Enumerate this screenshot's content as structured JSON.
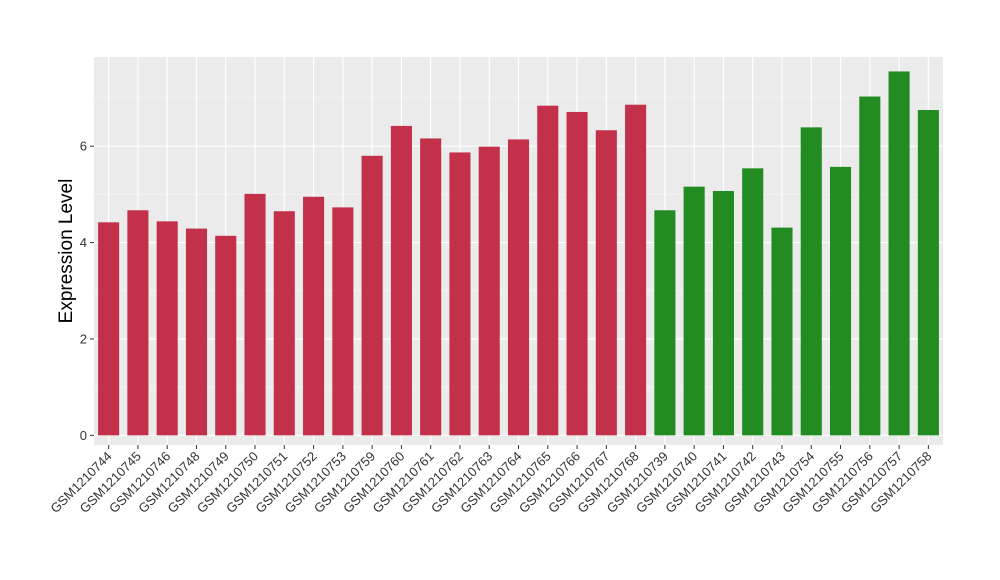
{
  "chart_data": {
    "type": "bar",
    "xlabel": "",
    "ylabel": "Expression Level",
    "ylim": [
      -0.2,
      7.85
    ],
    "yticks": [
      0,
      2,
      4,
      6
    ],
    "grid": true,
    "legend": "none",
    "colors": {
      "group_a": "#C3304A",
      "group_b": "#228B22",
      "panel": "#EBEBEB",
      "grid_major": "#FFFFFF",
      "grid_minor": "#F5F5F5"
    },
    "categories": [
      "GSM1210744",
      "GSM1210745",
      "GSM1210746",
      "GSM1210748",
      "GSM1210749",
      "GSM1210750",
      "GSM1210751",
      "GSM1210752",
      "GSM1210753",
      "GSM1210759",
      "GSM1210760",
      "GSM1210761",
      "GSM1210762",
      "GSM1210763",
      "GSM1210764",
      "GSM1210765",
      "GSM1210766",
      "GSM1210767",
      "GSM1210768",
      "GSM1210739",
      "GSM1210740",
      "GSM1210741",
      "GSM1210742",
      "GSM1210743",
      "GSM1210754",
      "GSM1210755",
      "GSM1210756",
      "GSM1210757",
      "GSM1210758"
    ],
    "values": [
      4.42,
      4.67,
      4.44,
      4.29,
      4.14,
      5.01,
      4.65,
      4.95,
      4.73,
      5.8,
      6.42,
      6.16,
      5.87,
      5.99,
      6.14,
      6.84,
      6.71,
      6.33,
      6.86,
      4.67,
      5.16,
      5.07,
      5.54,
      4.31,
      6.39,
      5.57,
      7.03,
      7.55,
      6.75
    ],
    "groups": [
      "a",
      "a",
      "a",
      "a",
      "a",
      "a",
      "a",
      "a",
      "a",
      "a",
      "a",
      "a",
      "a",
      "a",
      "a",
      "a",
      "a",
      "a",
      "a",
      "b",
      "b",
      "b",
      "b",
      "b",
      "b",
      "b",
      "b",
      "b",
      "b"
    ]
  }
}
